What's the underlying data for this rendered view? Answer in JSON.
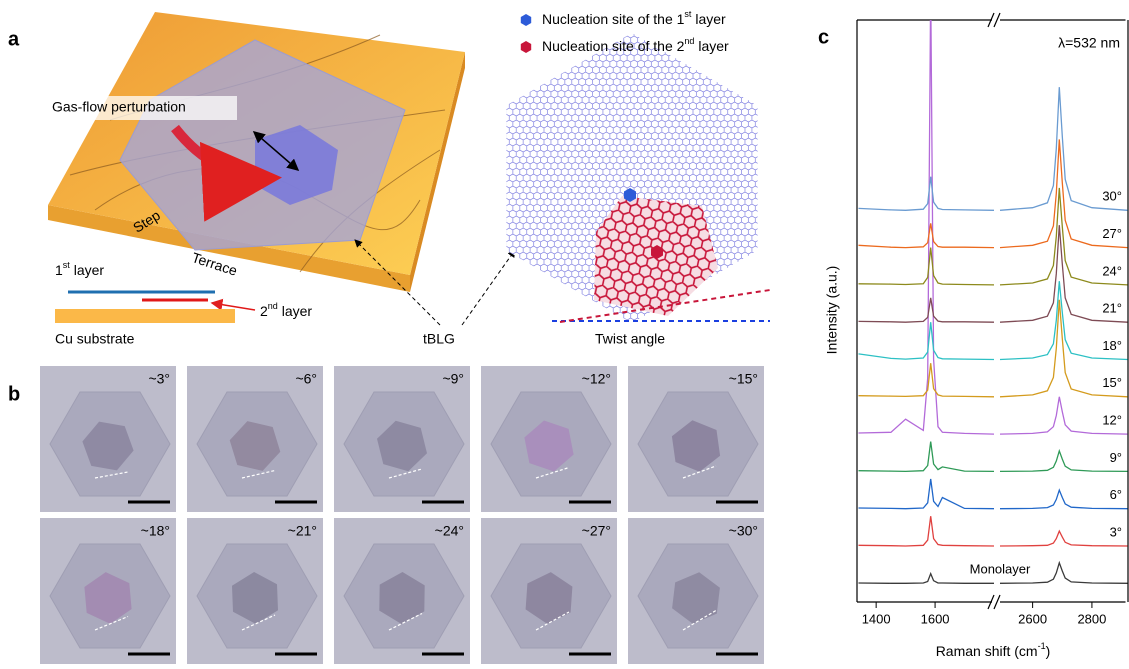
{
  "panel_a": {
    "label": "a",
    "legend": [
      {
        "parts": [
          "Nucleation site of the 1",
          "st",
          " layer"
        ],
        "color": "#2d5bd8"
      },
      {
        "parts": [
          "Nucleation site of the 2",
          "nd",
          " layer"
        ],
        "color": "#c8163a"
      }
    ],
    "gas_flow": "Gas-flow perturbation",
    "step": "Step",
    "terrace": "Terrace",
    "first_layer": [
      "1",
      "st",
      " layer"
    ],
    "second_layer": [
      "2",
      "nd",
      " layer"
    ],
    "substrate": "Cu substrate",
    "tblg": "tBLG",
    "twist_angle": "Twist angle"
  },
  "panel_b": {
    "label": "b",
    "angles": [
      "~3°",
      "~6°",
      "~9°",
      "~12°",
      "~15°",
      "~18°",
      "~21°",
      "~24°",
      "~27°",
      "~30°"
    ]
  },
  "chart_data": {
    "type": "line",
    "panel_label": "c",
    "annotation": "λ=532 nm",
    "ylabel": "Intensity (a.u.)",
    "xlabel": [
      "Raman shift (cm",
      "-1",
      ")"
    ],
    "x": [
      1340,
      1450,
      1500,
      1560,
      1575,
      1585,
      1595,
      1610,
      1625,
      1700,
      1800,
      2490,
      2600,
      2650,
      2670,
      2680,
      2690,
      2700,
      2710,
      2730,
      2800,
      2920
    ],
    "xlim": [
      [
        1335,
        1800
      ],
      [
        2490,
        2920
      ]
    ],
    "xticks": [
      [
        1400,
        1600
      ],
      [
        2600,
        2800
      ]
    ],
    "ylim": [
      -0.5,
      15.1
    ],
    "series": [
      {
        "name": "Monolayer",
        "color": "#3a3a3a",
        "values": [
          0.01,
          0,
          0,
          0.01,
          0.05,
          0.26,
          0.07,
          0.01,
          0.01,
          0,
          0,
          0,
          0.01,
          0.03,
          0.11,
          0.28,
          0.55,
          0.33,
          0.14,
          0.04,
          0.01,
          0
        ]
      },
      {
        "name": "3°",
        "color": "#e0413f",
        "values": [
          0.02,
          0.01,
          0,
          0.02,
          0.16,
          0.8,
          0.2,
          0.04,
          0.02,
          0.01,
          0,
          0,
          0.01,
          0.02,
          0.08,
          0.2,
          0.4,
          0.24,
          0.1,
          0.03,
          0.01,
          0
        ]
      },
      {
        "name": "6°",
        "color": "#2067c9",
        "values": [
          0.02,
          0.01,
          0,
          0.02,
          0.16,
          0.8,
          0.2,
          0.06,
          0.3,
          0.01,
          0,
          0,
          0.01,
          0.03,
          0.1,
          0.25,
          0.5,
          0.3,
          0.13,
          0.04,
          0.01,
          0
        ]
      },
      {
        "name": "9°",
        "color": "#2f9a57",
        "values": [
          0.02,
          0.01,
          0,
          0.02,
          0.16,
          0.8,
          0.2,
          0.05,
          0.12,
          0.01,
          0,
          0,
          0.01,
          0.03,
          0.11,
          0.28,
          0.55,
          0.33,
          0.14,
          0.04,
          0.01,
          0
        ]
      },
      {
        "name": "12°",
        "color": "#b36ad9",
        "values": [
          0.03,
          0.05,
          0.4,
          0.1,
          1.5,
          12,
          2,
          0.2,
          0.05,
          0.02,
          0,
          0,
          0.02,
          0.06,
          0.2,
          0.5,
          1,
          0.6,
          0.25,
          0.08,
          0.02,
          0
        ]
      },
      {
        "name": "15°",
        "color": "#d49b1d",
        "values": [
          0.03,
          0.02,
          0.01,
          0.03,
          0.18,
          0.9,
          0.22,
          0.05,
          0.02,
          0.01,
          0,
          0,
          0.05,
          0.16,
          0.52,
          1.3,
          2.6,
          1.56,
          0.65,
          0.21,
          0.05,
          0
        ]
      },
      {
        "name": "18°",
        "color": "#2cc0c4",
        "values": [
          0.15,
          0.03,
          0.01,
          0.04,
          0.2,
          1,
          0.25,
          0.05,
          0.02,
          0.01,
          0,
          0,
          0.04,
          0.13,
          0.42,
          1.05,
          2.1,
          1.26,
          0.53,
          0.17,
          0.04,
          0
        ]
      },
      {
        "name": "21°",
        "color": "#7e4b55",
        "values": [
          0.02,
          0.01,
          0,
          0.02,
          0.13,
          0.65,
          0.16,
          0.03,
          0.01,
          0.01,
          0,
          0,
          0.05,
          0.16,
          0.52,
          1.3,
          2.6,
          1.56,
          0.65,
          0.21,
          0.05,
          0
        ]
      },
      {
        "name": "24°",
        "color": "#8d8a1c",
        "values": [
          0.03,
          0.02,
          0.01,
          0.03,
          0.2,
          1,
          0.25,
          0.05,
          0.02,
          0.01,
          0,
          0,
          0.05,
          0.16,
          0.52,
          1.3,
          2.6,
          1.56,
          0.65,
          0.21,
          0.05,
          0
        ]
      },
      {
        "name": "27°",
        "color": "#ec6a1e",
        "values": [
          0.06,
          0.01,
          0,
          0.02,
          0.13,
          0.65,
          0.16,
          0.03,
          0.01,
          0.01,
          0,
          0,
          0.06,
          0.17,
          0.58,
          1.45,
          2.9,
          1.74,
          0.73,
          0.23,
          0.06,
          0
        ]
      },
      {
        "name": "30°",
        "color": "#6a9bd1",
        "values": [
          0.05,
          0.01,
          0,
          0.03,
          0.18,
          0.9,
          0.22,
          0.05,
          0.02,
          0.01,
          0,
          0,
          0.07,
          0.2,
          0.66,
          1.65,
          3.3,
          1.98,
          0.83,
          0.26,
          0.07,
          0
        ]
      }
    ]
  }
}
